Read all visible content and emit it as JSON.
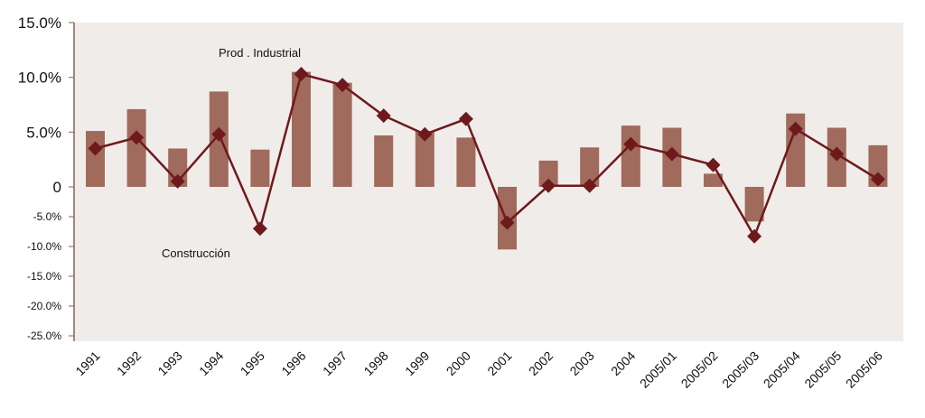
{
  "chart_data": {
    "type": "bar",
    "categories": [
      "1991",
      "1992",
      "1993",
      "1994",
      "1995",
      "1996",
      "1997",
      "1998",
      "1999",
      "2000",
      "2001",
      "2002",
      "2003",
      "2004",
      "2005/01",
      "2005/02",
      "2005/03",
      "2005/04",
      "2005/05",
      "2005/06"
    ],
    "series": [
      {
        "name": "Construcción",
        "type": "bar",
        "values": [
          5.1,
          7.1,
          3.5,
          8.7,
          3.4,
          10.5,
          9.5,
          4.7,
          5.1,
          4.5,
          -10.5,
          2.4,
          3.6,
          5.6,
          5.4,
          1.2,
          -5.8,
          6.7,
          5.4,
          3.8
        ]
      },
      {
        "name": "Prod . Industrial",
        "type": "line",
        "values": [
          3.5,
          4.5,
          0.5,
          4.8,
          -7.0,
          10.3,
          9.3,
          6.5,
          4.8,
          6.2,
          -6.0,
          0.1,
          0.1,
          3.9,
          3.0,
          2.0,
          -8.3,
          5.3,
          3.0,
          0.7
        ]
      }
    ],
    "yticks": [
      {
        "value": 15,
        "label": "15.0%"
      },
      {
        "value": 10,
        "label": "10.0%"
      },
      {
        "value": 5,
        "label": "5.0%"
      },
      {
        "value": 0,
        "label": "0"
      },
      {
        "value": -5,
        "label": "-5.0%"
      },
      {
        "value": -10,
        "label": "-10.0%"
      },
      {
        "value": -15,
        "label": "-15.0%"
      },
      {
        "value": -20,
        "label": "-20.0%"
      },
      {
        "value": -25,
        "label": "-25.0%"
      }
    ],
    "annotations": {
      "prod": "Prod . Industrial",
      "construccion": "Construcción"
    },
    "ylim": [
      -25,
      15
    ],
    "grid": false,
    "title": "",
    "xlabel": "",
    "ylabel": ""
  },
  "colors": {
    "bar": "#a06a5c",
    "line": "#6e1a1c",
    "plot_bg": "#f0ecea",
    "axis": "#8e5f56"
  }
}
